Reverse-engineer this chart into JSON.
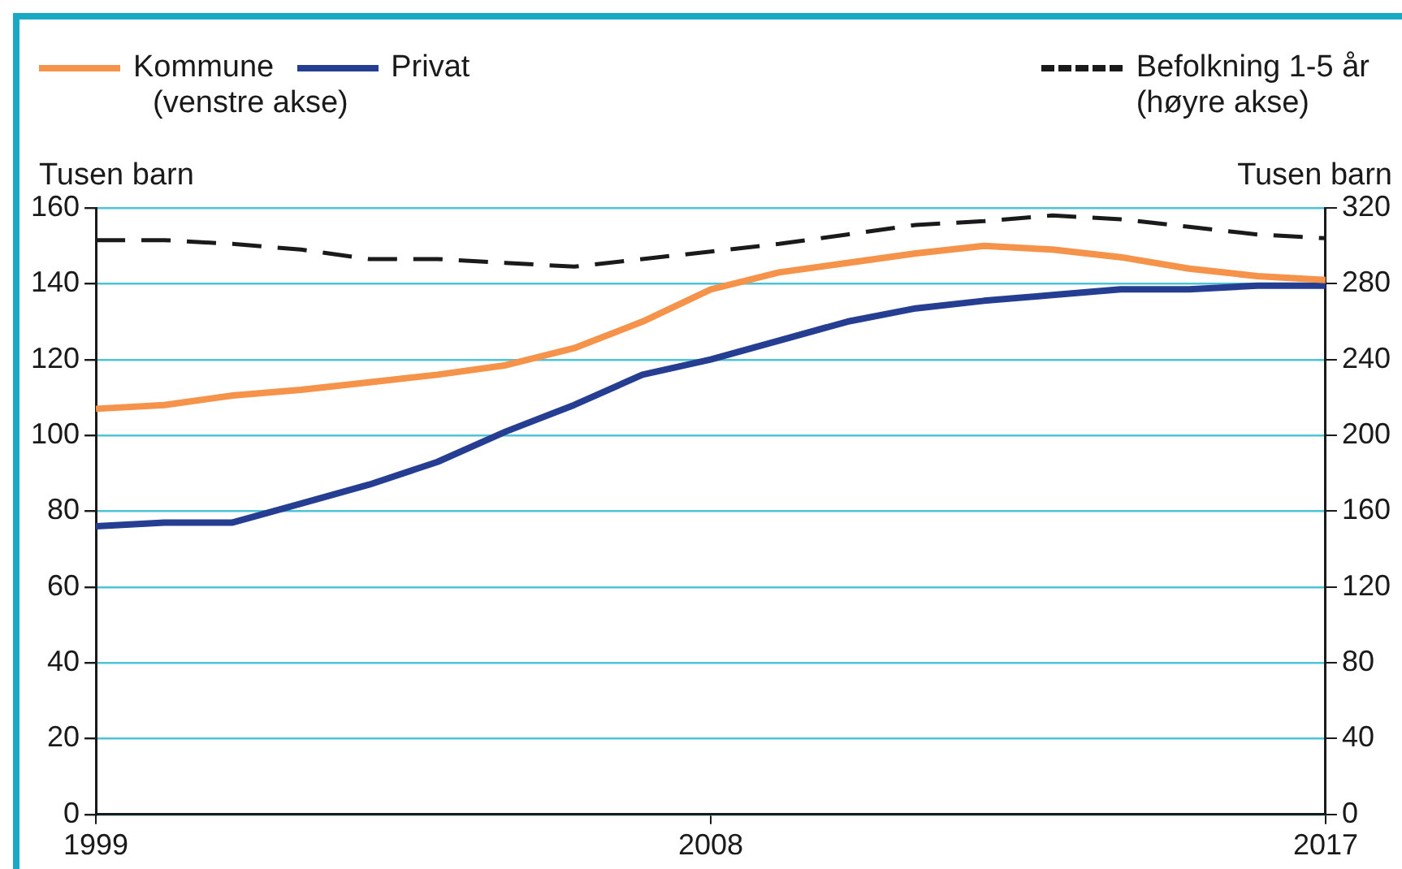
{
  "chart_data": {
    "type": "line",
    "x": [
      1999,
      2000,
      2001,
      2002,
      2003,
      2004,
      2005,
      2006,
      2007,
      2008,
      2009,
      2010,
      2011,
      2012,
      2013,
      2014,
      2015,
      2016,
      2017
    ],
    "series": [
      {
        "name": "Kommune",
        "color": "#f5934a",
        "values": [
          107,
          108,
          110.5,
          112,
          114,
          116,
          118.5,
          123,
          130,
          138.5,
          143,
          145.5,
          148,
          150,
          149,
          147,
          144,
          142,
          141
        ]
      },
      {
        "name": "Privat",
        "color": "#263e92",
        "values": [
          76,
          77,
          77,
          82,
          87,
          93,
          101,
          108,
          116,
          120,
          125,
          130,
          133.5,
          135.5,
          137,
          138.5,
          138.5,
          139.5,
          139.5
        ]
      },
      {
        "name": "Befolkning 1-5 år",
        "color": "#1a1a1a",
        "axis": "y2",
        "line_style": "dashed",
        "values": [
          303,
          303,
          301,
          298,
          293,
          293,
          291,
          289,
          293,
          297,
          301,
          306,
          311,
          313,
          316,
          314,
          310,
          306,
          304
        ]
      }
    ],
    "annotations": [
      "(venstre akse)",
      "(høyre akse)"
    ],
    "ylabel": "Tusen barn",
    "y2label": "Tusen barn",
    "xlim": [
      1999,
      2017
    ],
    "xticks": [
      1999,
      2008,
      2017
    ],
    "ylim": [
      0,
      160
    ],
    "yticks": [
      0,
      20,
      40,
      60,
      80,
      100,
      120,
      140,
      160
    ],
    "y2lim": [
      0,
      320
    ],
    "y2ticks": [
      0,
      40,
      80,
      120,
      160,
      200,
      240,
      280,
      320
    ],
    "grid": "y",
    "legend": "top",
    "marker": "none",
    "line_style": "solid"
  }
}
